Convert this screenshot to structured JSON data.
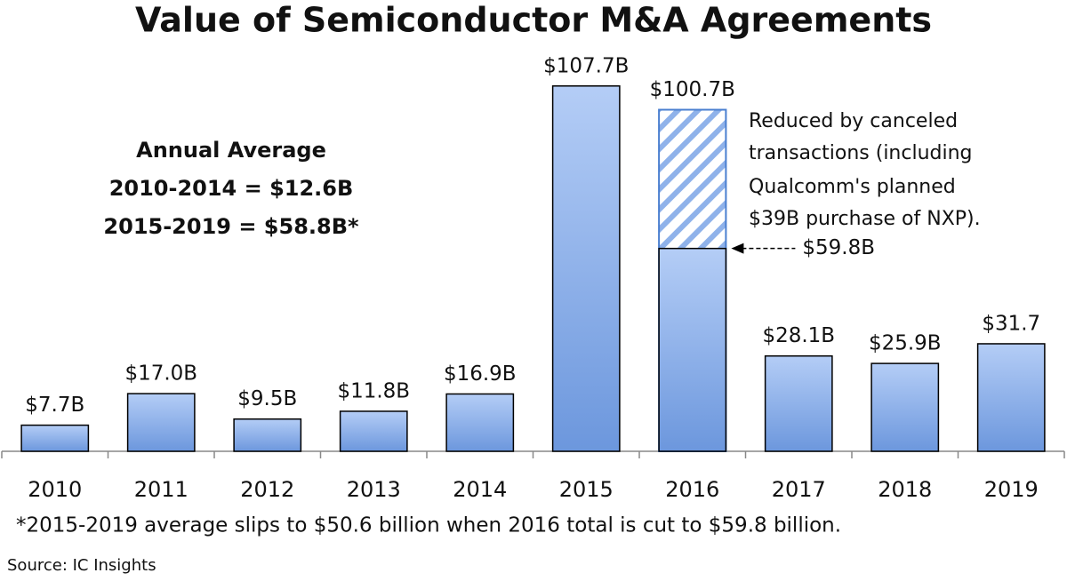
{
  "chart_data": {
    "type": "bar",
    "title": "Value of Semiconductor M&A Agreements",
    "categories": [
      "2010",
      "2011",
      "2012",
      "2013",
      "2014",
      "2015",
      "2016",
      "2017",
      "2018",
      "2019"
    ],
    "values": [
      7.7,
      17.0,
      9.5,
      11.8,
      16.9,
      107.7,
      100.7,
      28.1,
      25.9,
      31.7
    ],
    "value_labels": [
      "$7.7B",
      "$17.0B",
      "$9.5B",
      "$11.8B",
      "$16.9B",
      "$107.7B",
      "$100.7B",
      "$28.1B",
      "$25.9B",
      "$31.7"
    ],
    "color": "#7fa8ea",
    "ylim": [
      0,
      110
    ],
    "reduced": {
      "category": "2016",
      "value": 59.8,
      "label": "$59.8B",
      "note": [
        "Reduced by canceled",
        "transactions (including",
        "Qualcomm's planned",
        "$39B purchase of NXP)."
      ]
    },
    "average_box": [
      "Annual Average",
      "2010-2014 = $12.6B",
      "2015-2019 = $58.8B*"
    ],
    "footnote": "*2015-2019 average slips to $50.6 billion when 2016 total is cut to $59.8 billion.",
    "source": "Source: IC Insights"
  }
}
